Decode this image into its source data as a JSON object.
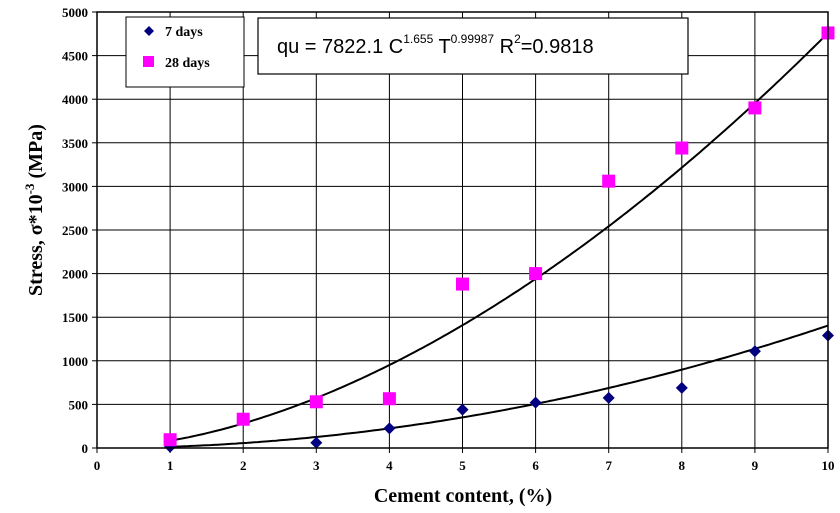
{
  "chart_data": {
    "type": "scatter",
    "xlabel": "Cement content, (%)",
    "ylabel": "Stress, σ*10",
    "ylabel_sup": "-3",
    "ylabel_unit": " (MPa)",
    "xlim": [
      0,
      10
    ],
    "ylim": [
      0,
      5000
    ],
    "x_ticks": [
      "0",
      "1",
      "2",
      "3",
      "4",
      "5",
      "6",
      "7",
      "8",
      "9",
      "10"
    ],
    "y_ticks": [
      "0",
      "500",
      "1000",
      "1500",
      "2000",
      "2500",
      "3000",
      "3500",
      "4000",
      "4500",
      "5000"
    ],
    "grid": true,
    "legend_position": "top-left",
    "series": [
      {
        "name": "7 days",
        "marker": "diamond",
        "color": "#000080",
        "x": [
          1,
          3,
          4,
          5,
          6,
          7,
          8,
          9,
          10
        ],
        "y": [
          15,
          60,
          225,
          440,
          520,
          575,
          690,
          1110,
          1290
        ],
        "trendline": {
          "a": 14.04,
          "b": 2.0
        }
      },
      {
        "name": "28 days",
        "marker": "square",
        "color": "#ff00ff",
        "x": [
          1,
          2,
          3,
          4,
          5,
          6,
          7,
          8,
          9,
          10
        ],
        "y": [
          95,
          330,
          530,
          565,
          1880,
          2000,
          3060,
          3440,
          3900,
          4760
        ],
        "trendline": {
          "a": 83.27,
          "b": 1.757
        }
      }
    ],
    "equation": {
      "prefix": "qu = 7822.1 C",
      "exp1": "1.655",
      "mid": " T",
      "exp2": "0.99987",
      "r": " R",
      "exp3": "2",
      "suffix": "=0.9818"
    }
  }
}
